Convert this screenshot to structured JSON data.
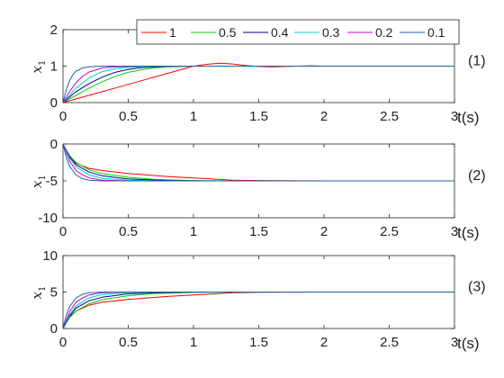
{
  "chart_data": [
    {
      "type": "line",
      "panel_label": "(1)",
      "xlabel": "t(s)",
      "ylabel": "x",
      "ylabel_sub": "1",
      "xlim": [
        0,
        3
      ],
      "ylim": [
        0,
        2
      ],
      "xticks": [
        "0",
        "0.5",
        "1",
        "1.5",
        "2",
        "2.5",
        "3"
      ],
      "yticks": [
        "0",
        "1",
        "2"
      ],
      "legend": "top, horizontal",
      "grid": false,
      "series": [
        {
          "name": "1",
          "color": "#ff0000",
          "x": [
            0,
            0.2,
            0.4,
            0.6,
            0.8,
            1.0,
            1.1,
            1.2,
            1.3,
            1.4,
            1.5,
            1.6,
            1.7,
            1.8,
            1.9,
            2.0,
            2.5,
            3.0
          ],
          "y": [
            0,
            0.2,
            0.4,
            0.6,
            0.8,
            1.0,
            1.05,
            1.08,
            1.06,
            1.02,
            0.99,
            0.98,
            0.99,
            1.0,
            1.01,
            1.0,
            1.0,
            1.0
          ]
        },
        {
          "name": "0.5",
          "color": "#00cc00",
          "x": [
            0,
            0.1,
            0.2,
            0.3,
            0.4,
            0.5,
            0.6,
            0.7,
            0.8,
            1.0,
            1.5,
            3.0
          ],
          "y": [
            0,
            0.2,
            0.4,
            0.57,
            0.72,
            0.83,
            0.9,
            0.95,
            0.98,
            1.0,
            1.0,
            1.0
          ]
        },
        {
          "name": "0.4",
          "color": "#00008b",
          "x": [
            0,
            0.1,
            0.2,
            0.3,
            0.4,
            0.5,
            0.6,
            0.8,
            1.0,
            3.0
          ],
          "y": [
            0,
            0.3,
            0.52,
            0.7,
            0.83,
            0.91,
            0.96,
            0.99,
            1.0,
            1.0
          ]
        },
        {
          "name": "0.3",
          "color": "#00cccc",
          "x": [
            0,
            0.1,
            0.2,
            0.3,
            0.4,
            0.5,
            0.7,
            1.0,
            3.0
          ],
          "y": [
            0,
            0.4,
            0.68,
            0.85,
            0.93,
            0.97,
            0.99,
            1.0,
            1.0
          ]
        },
        {
          "name": "0.2",
          "color": "#cc00cc",
          "x": [
            0,
            0.05,
            0.1,
            0.15,
            0.2,
            0.3,
            0.4,
            0.6,
            1.0,
            3.0
          ],
          "y": [
            0,
            0.3,
            0.55,
            0.72,
            0.84,
            0.95,
            0.98,
            1.0,
            1.0,
            1.0
          ]
        },
        {
          "name": "0.1",
          "color": "#1f5fa8",
          "x": [
            0,
            0.025,
            0.05,
            0.075,
            0.1,
            0.15,
            0.2,
            0.3,
            0.5,
            3.0
          ],
          "y": [
            0,
            0.35,
            0.6,
            0.76,
            0.86,
            0.95,
            0.98,
            1.0,
            1.0,
            1.0
          ]
        }
      ]
    },
    {
      "type": "line",
      "panel_label": "(2)",
      "xlabel": "t(s)",
      "ylabel": "x",
      "ylabel_sub": "1",
      "xlim": [
        0,
        3
      ],
      "ylim": [
        -10,
        0
      ],
      "xticks": [
        "0",
        "0.5",
        "1",
        "1.5",
        "2",
        "2.5",
        "3"
      ],
      "yticks": [
        "-10",
        "-5",
        "0"
      ],
      "grid": false,
      "series": [
        {
          "name": "1",
          "color": "#ff0000",
          "x": [
            0,
            0.05,
            0.1,
            0.2,
            0.3,
            0.5,
            0.8,
            1.0,
            1.3,
            1.5,
            2.0,
            3.0
          ],
          "y": [
            0,
            -1.8,
            -2.6,
            -3.3,
            -3.6,
            -4.0,
            -4.4,
            -4.6,
            -4.9,
            -4.95,
            -5.0,
            -5.0
          ]
        },
        {
          "name": "0.5",
          "color": "#00cc00",
          "x": [
            0,
            0.05,
            0.1,
            0.2,
            0.3,
            0.5,
            0.7,
            1.0,
            1.3,
            3.0
          ],
          "y": [
            0,
            -1.6,
            -2.5,
            -3.5,
            -4.0,
            -4.5,
            -4.8,
            -4.95,
            -5.0,
            -5.0
          ]
        },
        {
          "name": "0.4",
          "color": "#00008b",
          "x": [
            0,
            0.05,
            0.1,
            0.2,
            0.3,
            0.5,
            0.8,
            1.1,
            3.0
          ],
          "y": [
            0,
            -1.7,
            -2.8,
            -3.8,
            -4.3,
            -4.75,
            -4.95,
            -5.0,
            -5.0
          ]
        },
        {
          "name": "0.3",
          "color": "#00cccc",
          "x": [
            0,
            0.05,
            0.1,
            0.2,
            0.3,
            0.5,
            0.8,
            3.0
          ],
          "y": [
            0,
            -1.9,
            -3.1,
            -4.2,
            -4.65,
            -4.93,
            -5.0,
            -5.0
          ]
        },
        {
          "name": "0.2",
          "color": "#cc00cc",
          "x": [
            0,
            0.05,
            0.1,
            0.15,
            0.2,
            0.3,
            0.5,
            0.8,
            3.0
          ],
          "y": [
            0,
            -2.3,
            -3.6,
            -4.2,
            -4.6,
            -4.9,
            -5.0,
            -5.0,
            -5.0
          ]
        },
        {
          "name": "0.1",
          "color": "#1f5fa8",
          "x": [
            0,
            0.025,
            0.05,
            0.1,
            0.15,
            0.2,
            0.3,
            0.5,
            3.0
          ],
          "y": [
            0,
            -1.8,
            -3.0,
            -4.2,
            -4.7,
            -4.9,
            -5.0,
            -5.0,
            -5.0
          ]
        }
      ]
    },
    {
      "type": "line",
      "panel_label": "(3)",
      "xlabel": "t(s)",
      "ylabel": "x",
      "ylabel_sub": "1",
      "xlim": [
        0,
        3
      ],
      "ylim": [
        0,
        10
      ],
      "xticks": [
        "0",
        "0.5",
        "1",
        "1.5",
        "2",
        "2.5",
        "3"
      ],
      "yticks": [
        "0",
        "5",
        "10"
      ],
      "grid": false,
      "series": [
        {
          "name": "1",
          "color": "#ff0000",
          "x": [
            0,
            0.05,
            0.1,
            0.2,
            0.3,
            0.5,
            0.8,
            1.0,
            1.3,
            1.5,
            2.0,
            3.0
          ],
          "y": [
            0,
            1.6,
            2.4,
            3.2,
            3.6,
            4.0,
            4.4,
            4.6,
            4.9,
            4.97,
            5.0,
            5.0
          ]
        },
        {
          "name": "0.5",
          "color": "#00cc00",
          "x": [
            0,
            0.05,
            0.1,
            0.2,
            0.3,
            0.5,
            0.7,
            1.0,
            1.3,
            3.0
          ],
          "y": [
            0,
            1.5,
            2.4,
            3.4,
            3.95,
            4.5,
            4.8,
            4.95,
            5.0,
            5.0
          ]
        },
        {
          "name": "0.4",
          "color": "#00008b",
          "x": [
            0,
            0.05,
            0.1,
            0.2,
            0.3,
            0.5,
            0.8,
            1.1,
            3.0
          ],
          "y": [
            0,
            1.7,
            2.8,
            3.8,
            4.3,
            4.75,
            4.95,
            5.0,
            5.0
          ]
        },
        {
          "name": "0.3",
          "color": "#00cccc",
          "x": [
            0,
            0.05,
            0.1,
            0.2,
            0.3,
            0.5,
            0.8,
            3.0
          ],
          "y": [
            0,
            1.9,
            3.1,
            4.2,
            4.65,
            4.93,
            5.0,
            5.0
          ]
        },
        {
          "name": "0.2",
          "color": "#cc00cc",
          "x": [
            0,
            0.05,
            0.1,
            0.15,
            0.2,
            0.3,
            0.5,
            0.8,
            3.0
          ],
          "y": [
            0,
            2.3,
            3.6,
            4.2,
            4.6,
            4.9,
            5.0,
            5.0,
            5.0
          ]
        },
        {
          "name": "0.1",
          "color": "#1f5fa8",
          "x": [
            0,
            0.025,
            0.05,
            0.1,
            0.15,
            0.2,
            0.3,
            0.5,
            3.0
          ],
          "y": [
            0,
            1.8,
            3.0,
            4.2,
            4.7,
            4.9,
            5.0,
            5.0,
            5.0
          ]
        }
      ]
    }
  ]
}
